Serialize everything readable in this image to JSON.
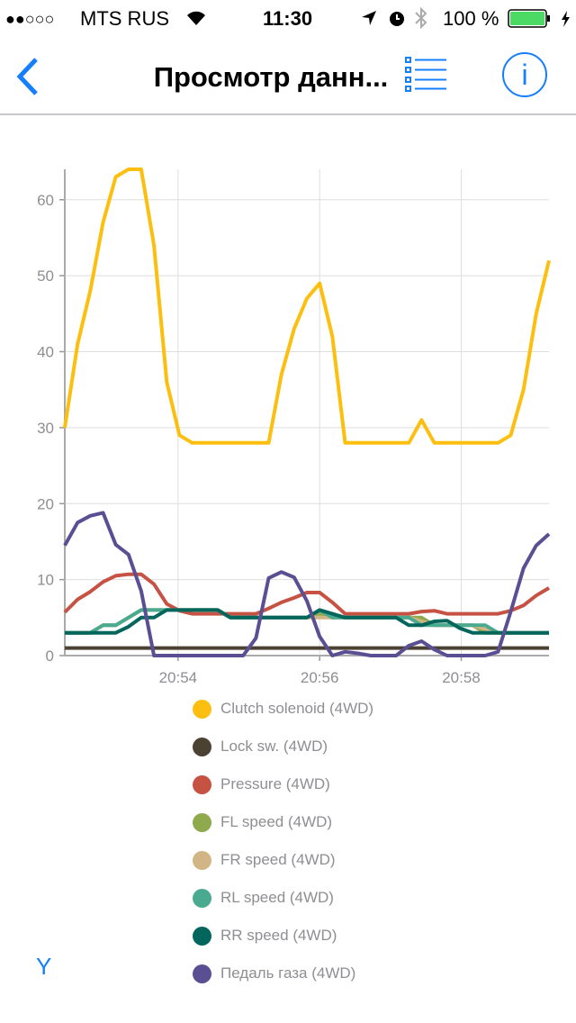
{
  "status_bar": {
    "signal": "●●○○○",
    "carrier": "MTS RUS",
    "time": "11:30",
    "battery": "100 %"
  },
  "nav": {
    "title": "Просмотр данн...",
    "info_label": "i"
  },
  "y_button": "Y",
  "chart_data": {
    "type": "line",
    "x_unit": "minutes after 20:00",
    "x": [
      52.4,
      52.58,
      52.76,
      52.94,
      53.12,
      53.3,
      53.48,
      53.66,
      53.84,
      54.02,
      54.2,
      54.38,
      54.56,
      54.74,
      54.92,
      55.1,
      55.28,
      55.46,
      55.64,
      55.82,
      56.0,
      56.18,
      56.36,
      56.54,
      56.72,
      56.9,
      57.08,
      57.26,
      57.44,
      57.62,
      57.8,
      57.98,
      58.16,
      58.34,
      58.52,
      58.7,
      58.88,
      59.06,
      59.24
    ],
    "xlim": [
      52.4,
      59.24
    ],
    "ylim": [
      0,
      64
    ],
    "x_ticks": [
      {
        "v": 54,
        "label": "20:54"
      },
      {
        "v": 56,
        "label": "20:56"
      },
      {
        "v": 58,
        "label": "20:58"
      }
    ],
    "y_ticks": [
      {
        "v": 0,
        "label": "0"
      },
      {
        "v": 10,
        "label": "10"
      },
      {
        "v": 20,
        "label": "20"
      },
      {
        "v": 30,
        "label": "30"
      },
      {
        "v": 40,
        "label": "40"
      },
      {
        "v": 50,
        "label": "50"
      },
      {
        "v": 60,
        "label": "60"
      }
    ],
    "grid": true,
    "legend_placement": "bottom",
    "series": [
      {
        "name": "Clutch solenoid (4WD)",
        "color": "#fdbf0f",
        "values": [
          30,
          41,
          48,
          57,
          63,
          64,
          64,
          54,
          36,
          29,
          28,
          28,
          28,
          28,
          28,
          28,
          28,
          37,
          43,
          47,
          49,
          42,
          28,
          28,
          28,
          28,
          28,
          28,
          31,
          28,
          28,
          28,
          28,
          28,
          28,
          29,
          35,
          45,
          52
        ]
      },
      {
        "name": "Lock sw. (4WD)",
        "color": "#4c4234",
        "values": [
          1,
          1,
          1,
          1,
          1,
          1,
          1,
          1,
          1,
          1,
          1,
          1,
          1,
          1,
          1,
          1,
          1,
          1,
          1,
          1,
          1,
          1,
          1,
          1,
          1,
          1,
          1,
          1,
          1,
          1,
          1,
          1,
          1,
          1,
          1,
          1,
          1,
          1,
          1
        ]
      },
      {
        "name": "Pressure (4WD)",
        "color": "#c65243",
        "values": [
          5.7,
          7.4,
          8.4,
          9.7,
          10.5,
          10.7,
          10.7,
          9.4,
          6.8,
          5.9,
          5.5,
          5.5,
          5.5,
          5.5,
          5.5,
          5.5,
          6.2,
          7,
          7.6,
          8.3,
          8.3,
          7,
          5.5,
          5.5,
          5.5,
          5.5,
          5.5,
          5.5,
          5.8,
          5.9,
          5.5,
          5.5,
          5.5,
          5.5,
          5.5,
          5.9,
          6.6,
          7.9,
          8.9
        ]
      },
      {
        "name": "FL speed (4WD)",
        "color": "#8faa4c",
        "values": [
          3,
          3,
          3,
          4,
          4,
          5,
          6,
          6,
          6,
          6,
          6,
          6,
          6,
          5,
          5,
          5,
          5,
          5,
          5,
          5,
          5.5,
          5,
          5,
          5,
          5,
          5,
          5,
          5,
          5,
          4,
          4,
          4,
          4,
          3,
          3,
          3,
          3,
          3,
          3
        ]
      },
      {
        "name": "FR speed (4WD)",
        "color": "#d2b584",
        "values": [
          3,
          3,
          3,
          4,
          4,
          5,
          6,
          6,
          6,
          6,
          6,
          6,
          6,
          5,
          5,
          5,
          5,
          5,
          5,
          5,
          5,
          5,
          5,
          5,
          5,
          5,
          5,
          5,
          4.5,
          4,
          4,
          4,
          4,
          3.5,
          3,
          3,
          3,
          3,
          3
        ]
      },
      {
        "name": "RL speed (4WD)",
        "color": "#4aaa90",
        "values": [
          3,
          3,
          3,
          4,
          4,
          5,
          6,
          6,
          6,
          6,
          6,
          6,
          6,
          5,
          5,
          5,
          5,
          5,
          5,
          5,
          6,
          5,
          5,
          5,
          5,
          5,
          5,
          5,
          4,
          4,
          4,
          4,
          4,
          4,
          3,
          3,
          3,
          3,
          3
        ]
      },
      {
        "name": "RR speed (4WD)",
        "color": "#03665c",
        "values": [
          3,
          3,
          3,
          3,
          3,
          3.8,
          5,
          5,
          6,
          6,
          6,
          6,
          6,
          5,
          5,
          5,
          5,
          5,
          5,
          5,
          6,
          5.5,
          5,
          5,
          5,
          5,
          5,
          4,
          4,
          4.5,
          4.6,
          3.6,
          3,
          3,
          3,
          3,
          3,
          3,
          3
        ]
      },
      {
        "name": "Педаль газа (4WD)",
        "color": "#5b4f94",
        "values": [
          14.5,
          17.5,
          18.4,
          18.8,
          14.6,
          13.3,
          8.5,
          0,
          0,
          0,
          0,
          0,
          0,
          0,
          0,
          2.3,
          10.2,
          11,
          10.3,
          7.2,
          2.5,
          0,
          0.5,
          0.3,
          0,
          0,
          0,
          1.3,
          1.9,
          0.8,
          0,
          0,
          0,
          0,
          0.5,
          5.8,
          11.5,
          14.5,
          16
        ]
      }
    ]
  }
}
